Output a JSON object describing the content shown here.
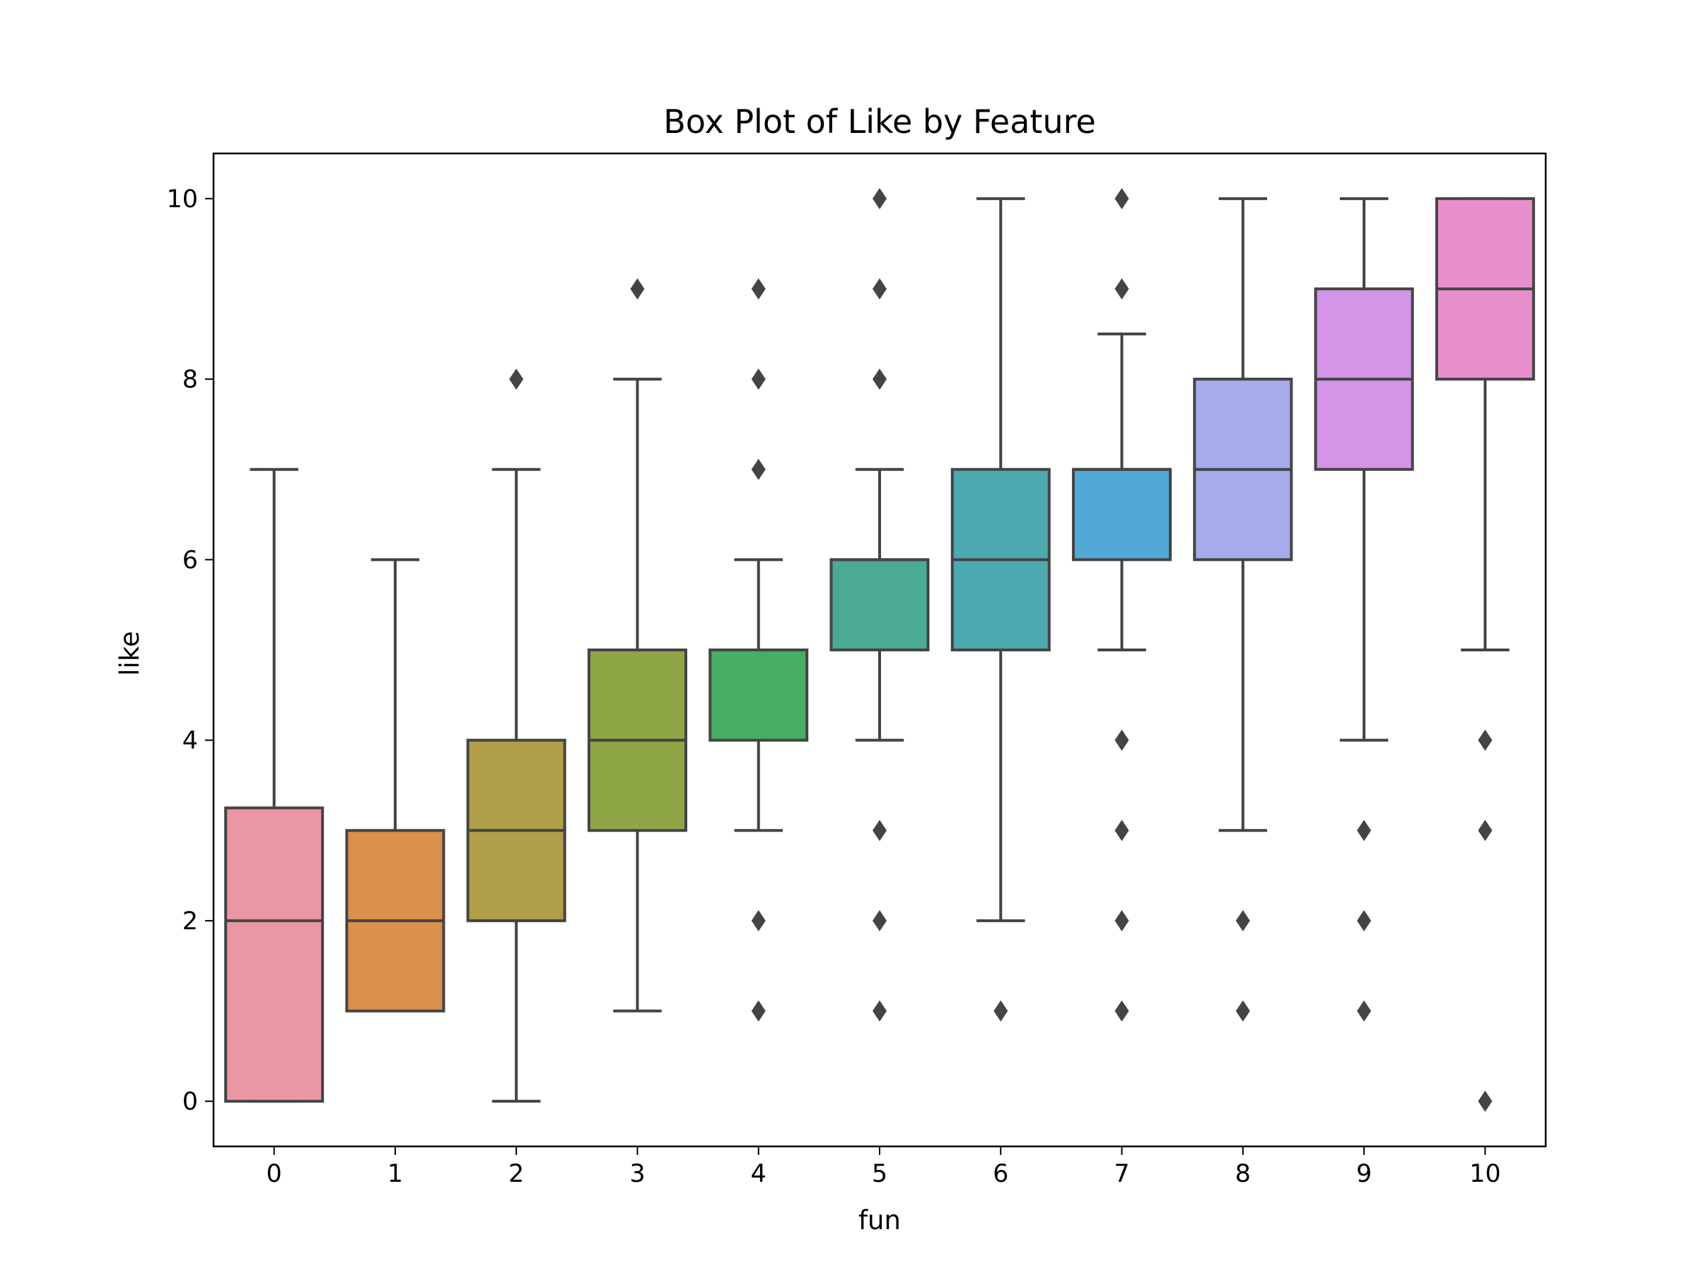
{
  "chart_data": {
    "type": "box",
    "title": "Box Plot of Like by Feature",
    "xlabel": "fun",
    "ylabel": "like",
    "ylim": [
      -0.5,
      10.5
    ],
    "yticks": [
      0,
      2,
      4,
      6,
      8,
      10
    ],
    "ytick_labels": [
      "0",
      "2",
      "4",
      "6",
      "8",
      "10"
    ],
    "grid": false,
    "legend": "none",
    "categories": [
      "0",
      "1",
      "2",
      "3",
      "4",
      "5",
      "6",
      "7",
      "8",
      "9",
      "10"
    ],
    "colors": [
      "#ea96a3",
      "#db904b",
      "#b09e48",
      "#8ea646",
      "#47ad63",
      "#4aaa93",
      "#4ca9b0",
      "#52a8d4",
      "#a5abeb",
      "#d494e8",
      "#e78fcb"
    ],
    "line_color": "#444444",
    "boxes": [
      {
        "whisker_low": 0,
        "q1": 0,
        "median": 2,
        "q3": 3.25,
        "whisker_high": 7,
        "outliers": []
      },
      {
        "whisker_low": 1,
        "q1": 1,
        "median": 2,
        "q3": 3,
        "whisker_high": 6,
        "outliers": []
      },
      {
        "whisker_low": 0,
        "q1": 2,
        "median": 3,
        "q3": 4,
        "whisker_high": 7,
        "outliers": [
          8
        ]
      },
      {
        "whisker_low": 1,
        "q1": 3,
        "median": 4,
        "q3": 5,
        "whisker_high": 8,
        "outliers": [
          9
        ]
      },
      {
        "whisker_low": 3,
        "q1": 4,
        "median": 5,
        "q3": 5,
        "whisker_high": 6,
        "outliers": [
          1,
          2,
          7,
          8,
          9
        ]
      },
      {
        "whisker_low": 4,
        "q1": 5,
        "median": 6,
        "q3": 6,
        "whisker_high": 7,
        "outliers": [
          1,
          2,
          3,
          8,
          9,
          10
        ]
      },
      {
        "whisker_low": 2,
        "q1": 5,
        "median": 6,
        "q3": 7,
        "whisker_high": 10,
        "outliers": [
          1
        ]
      },
      {
        "whisker_low": 5,
        "q1": 6,
        "median": 7,
        "q3": 7,
        "whisker_high": 8.5,
        "outliers": [
          1,
          2,
          3,
          4,
          9,
          10
        ]
      },
      {
        "whisker_low": 3,
        "q1": 6,
        "median": 7,
        "q3": 8,
        "whisker_high": 10,
        "outliers": [
          1,
          2
        ]
      },
      {
        "whisker_low": 4,
        "q1": 7,
        "median": 8,
        "q3": 9,
        "whisker_high": 10,
        "outliers": [
          1,
          2,
          3
        ]
      },
      {
        "whisker_low": 5,
        "q1": 8,
        "median": 9,
        "q3": 10,
        "whisker_high": 10,
        "outliers": [
          0,
          3,
          4
        ]
      }
    ]
  }
}
